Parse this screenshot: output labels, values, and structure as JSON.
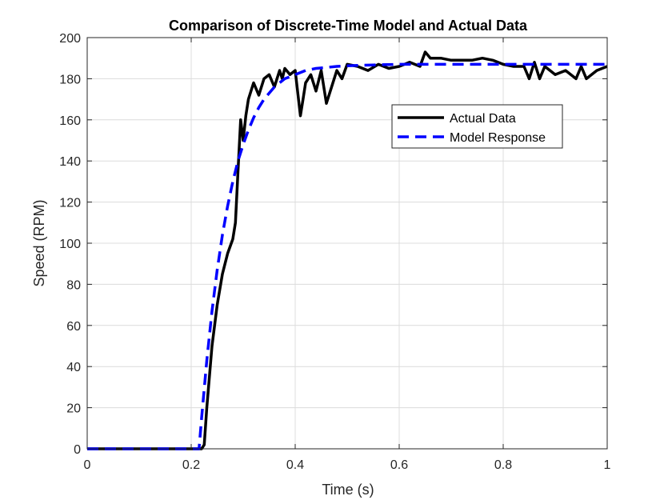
{
  "chart_data": {
    "type": "line",
    "title": "Comparison of Discrete-Time Model and Actual Data",
    "xlabel": "Time (s)",
    "ylabel": "Speed (RPM)",
    "xlim": [
      0,
      1
    ],
    "ylim": [
      0,
      200
    ],
    "xticks": [
      0,
      0.2,
      0.4,
      0.6,
      0.8,
      1
    ],
    "xtick_labels": [
      "0",
      "0.2",
      "0.4",
      "0.6",
      "0.8",
      "1"
    ],
    "yticks": [
      0,
      20,
      40,
      60,
      80,
      100,
      120,
      140,
      160,
      180,
      200
    ],
    "ytick_labels": [
      "0",
      "20",
      "40",
      "60",
      "80",
      "100",
      "120",
      "140",
      "160",
      "180",
      "200"
    ],
    "grid": true,
    "legend_position": "upper-right (inside)",
    "series": [
      {
        "name": "Actual Data",
        "color": "#000000",
        "style": "solid",
        "x": [
          0,
          0.2,
          0.22,
          0.225,
          0.23,
          0.24,
          0.25,
          0.26,
          0.27,
          0.28,
          0.285,
          0.29,
          0.295,
          0.3,
          0.305,
          0.31,
          0.32,
          0.33,
          0.34,
          0.35,
          0.36,
          0.37,
          0.375,
          0.38,
          0.39,
          0.4,
          0.41,
          0.415,
          0.42,
          0.43,
          0.44,
          0.45,
          0.46,
          0.47,
          0.48,
          0.49,
          0.5,
          0.52,
          0.54,
          0.56,
          0.58,
          0.6,
          0.62,
          0.64,
          0.65,
          0.66,
          0.68,
          0.7,
          0.72,
          0.74,
          0.76,
          0.78,
          0.8,
          0.82,
          0.84,
          0.85,
          0.86,
          0.87,
          0.88,
          0.9,
          0.92,
          0.94,
          0.95,
          0.96,
          0.98,
          1.0
        ],
        "y": [
          0,
          0,
          0,
          2,
          20,
          50,
          70,
          85,
          95,
          102,
          110,
          135,
          160,
          150,
          162,
          170,
          178,
          172,
          180,
          182,
          176,
          184,
          180,
          185,
          182,
          184,
          162,
          170,
          178,
          182,
          174,
          184,
          168,
          176,
          184,
          180,
          187,
          186,
          184,
          187,
          185,
          186,
          188,
          186,
          193,
          190,
          190,
          189,
          189,
          189,
          190,
          189,
          187,
          186,
          186,
          180,
          188,
          180,
          186,
          182,
          184,
          180,
          186,
          180,
          184,
          186
        ]
      },
      {
        "name": "Model Response",
        "color": "#0000ff",
        "style": "dashed",
        "x": [
          0,
          0.215,
          0.22,
          0.23,
          0.24,
          0.25,
          0.26,
          0.27,
          0.28,
          0.29,
          0.3,
          0.31,
          0.32,
          0.33,
          0.34,
          0.35,
          0.36,
          0.37,
          0.38,
          0.4,
          0.42,
          0.44,
          0.46,
          0.48,
          0.5,
          0.55,
          0.6,
          0.7,
          0.8,
          0.9,
          1.0
        ],
        "y": [
          0,
          0,
          15,
          43,
          67,
          87,
          104,
          118,
          130,
          140,
          148,
          155,
          161,
          166,
          170,
          173,
          176,
          178,
          180,
          182,
          184,
          185,
          185.5,
          186,
          186.3,
          186.7,
          187,
          187,
          187,
          187,
          187
        ]
      }
    ]
  }
}
